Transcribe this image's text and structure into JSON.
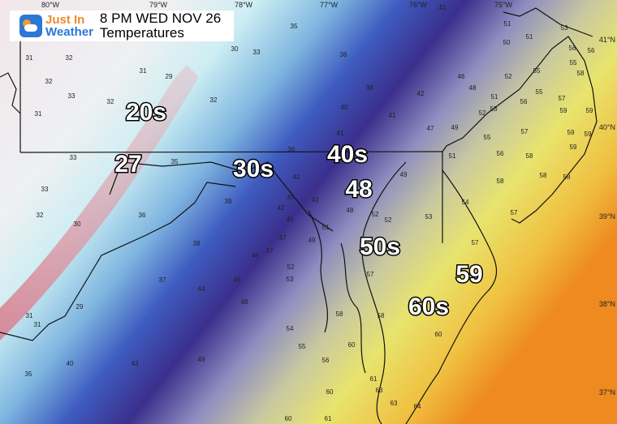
{
  "header": {
    "logo_line1": "Just In",
    "logo_line2": "Weather",
    "time": "8 PM WED NOV 26",
    "product": "Temperatures"
  },
  "longitudes": [
    "80°W",
    "79°W",
    "78°W",
    "77°W",
    "76°W",
    "75°W"
  ],
  "latitudes": [
    "41°N",
    "40°N",
    "39°N",
    "38°N",
    "37°N"
  ],
  "big_labels": [
    "20s",
    "27",
    "30s",
    "40s",
    "48",
    "50s",
    "59",
    "60s"
  ],
  "station_temps": [
    35,
    41,
    30,
    33,
    36,
    31,
    32,
    31,
    38,
    42,
    32,
    33,
    29,
    32,
    32,
    31,
    40,
    41,
    41,
    47,
    49,
    36,
    33,
    35,
    42,
    43,
    39,
    33,
    32,
    30,
    36,
    45,
    42,
    38,
    45,
    47,
    49,
    51,
    46,
    47,
    52,
    46,
    53,
    44,
    37,
    48,
    29,
    31,
    31,
    49,
    43,
    54,
    55,
    56,
    58,
    57,
    60,
    40,
    35,
    58,
    52,
    53,
    49,
    48,
    54,
    57,
    60,
    61,
    63,
    63,
    64,
    60,
    61,
    60,
    51,
    50,
    51,
    53,
    56,
    55,
    56,
    55,
    58,
    46,
    48,
    52,
    51,
    53,
    52,
    56,
    57,
    55,
    55,
    57,
    59,
    59,
    59,
    59,
    59,
    58,
    58,
    58,
    56,
    51,
    58,
    57,
    52
  ],
  "colors": {
    "cold_pink": "#e8a8b0",
    "cyan": "#bfe6ee",
    "blue": "#3f5fc0",
    "indigo": "#3a2f8a",
    "lavender": "#a8a8c8",
    "yellow": "#e8e070",
    "orange": "#f0a030"
  }
}
